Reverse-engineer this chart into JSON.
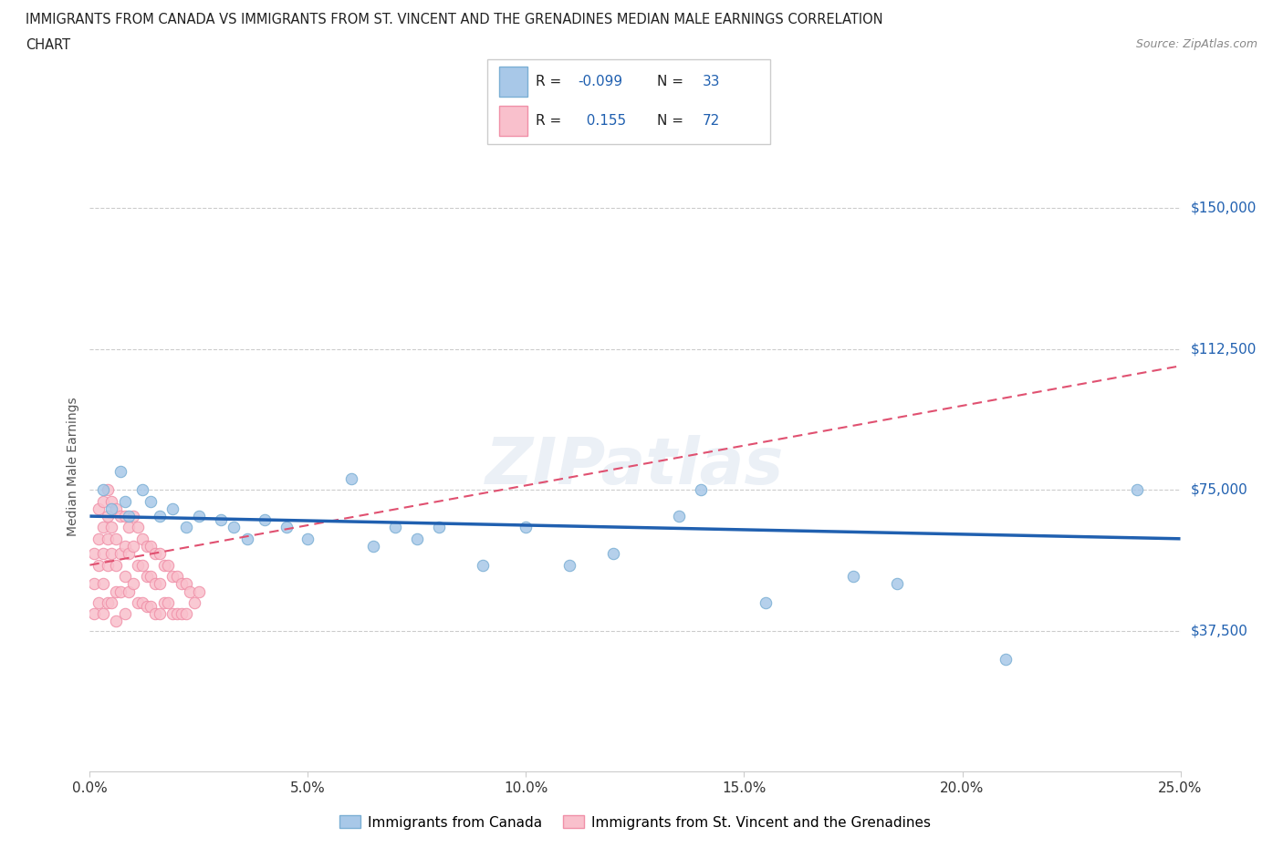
{
  "title_line1": "IMMIGRANTS FROM CANADA VS IMMIGRANTS FROM ST. VINCENT AND THE GRENADINES MEDIAN MALE EARNINGS CORRELATION",
  "title_line2": "CHART",
  "source": "Source: ZipAtlas.com",
  "ylabel": "Median Male Earnings",
  "xlim": [
    0.0,
    0.25
  ],
  "ylim": [
    0,
    162500
  ],
  "yticks": [
    0,
    37500,
    75000,
    112500,
    150000
  ],
  "ytick_labels": [
    "",
    "$37,500",
    "$75,000",
    "$112,500",
    "$150,000"
  ],
  "xtick_labels": [
    "0.0%",
    "5.0%",
    "10.0%",
    "15.0%",
    "20.0%",
    "25.0%"
  ],
  "xticks": [
    0.0,
    0.05,
    0.1,
    0.15,
    0.2,
    0.25
  ],
  "canada_dot_color": "#a8c8e8",
  "canada_edge_color": "#7bafd4",
  "svg_dot_color": "#f9c0cc",
  "svg_edge_color": "#f090a8",
  "trend_canada_color": "#2060b0",
  "trend_svg_color": "#e05070",
  "watermark": "ZIPatlas",
  "R_canada": -0.099,
  "N_canada": 33,
  "R_svg": 0.155,
  "N_svg": 72,
  "trend_canada_y0": 68000,
  "trend_canada_y1": 62000,
  "trend_svg_y0": 55000,
  "trend_svg_y1": 108000,
  "canada_x": [
    0.003,
    0.005,
    0.007,
    0.008,
    0.009,
    0.012,
    0.014,
    0.016,
    0.019,
    0.022,
    0.025,
    0.03,
    0.033,
    0.036,
    0.04,
    0.045,
    0.05,
    0.06,
    0.065,
    0.07,
    0.075,
    0.08,
    0.09,
    0.1,
    0.11,
    0.12,
    0.135,
    0.14,
    0.155,
    0.175,
    0.185,
    0.21,
    0.24
  ],
  "canada_y": [
    75000,
    70000,
    80000,
    72000,
    68000,
    75000,
    72000,
    68000,
    70000,
    65000,
    68000,
    67000,
    65000,
    62000,
    67000,
    65000,
    62000,
    78000,
    60000,
    65000,
    62000,
    65000,
    55000,
    65000,
    55000,
    58000,
    68000,
    75000,
    45000,
    52000,
    50000,
    30000,
    75000
  ],
  "svg_x": [
    0.001,
    0.001,
    0.001,
    0.002,
    0.002,
    0.002,
    0.002,
    0.003,
    0.003,
    0.003,
    0.003,
    0.003,
    0.004,
    0.004,
    0.004,
    0.004,
    0.004,
    0.005,
    0.005,
    0.005,
    0.005,
    0.006,
    0.006,
    0.006,
    0.006,
    0.006,
    0.007,
    0.007,
    0.007,
    0.008,
    0.008,
    0.008,
    0.008,
    0.009,
    0.009,
    0.009,
    0.01,
    0.01,
    0.01,
    0.011,
    0.011,
    0.011,
    0.012,
    0.012,
    0.012,
    0.013,
    0.013,
    0.013,
    0.014,
    0.014,
    0.014,
    0.015,
    0.015,
    0.015,
    0.016,
    0.016,
    0.016,
    0.017,
    0.017,
    0.018,
    0.018,
    0.019,
    0.019,
    0.02,
    0.02,
    0.021,
    0.021,
    0.022,
    0.022,
    0.023,
    0.024,
    0.025
  ],
  "svg_y": [
    58000,
    50000,
    42000,
    70000,
    62000,
    55000,
    45000,
    72000,
    65000,
    58000,
    50000,
    42000,
    75000,
    68000,
    62000,
    55000,
    45000,
    72000,
    65000,
    58000,
    45000,
    70000,
    62000,
    55000,
    48000,
    40000,
    68000,
    58000,
    48000,
    68000,
    60000,
    52000,
    42000,
    65000,
    58000,
    48000,
    68000,
    60000,
    50000,
    65000,
    55000,
    45000,
    62000,
    55000,
    45000,
    60000,
    52000,
    44000,
    60000,
    52000,
    44000,
    58000,
    50000,
    42000,
    58000,
    50000,
    42000,
    55000,
    45000,
    55000,
    45000,
    52000,
    42000,
    52000,
    42000,
    50000,
    42000,
    50000,
    42000,
    48000,
    45000,
    48000
  ]
}
